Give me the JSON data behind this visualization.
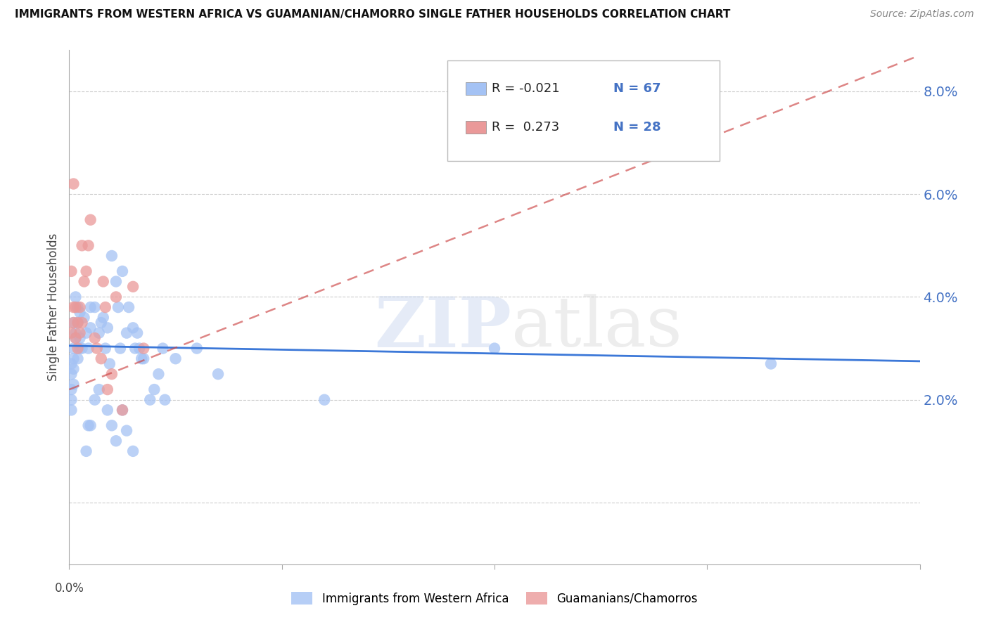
{
  "title": "IMMIGRANTS FROM WESTERN AFRICA VS GUAMANIAN/CHAMORRO SINGLE FATHER HOUSEHOLDS CORRELATION CHART",
  "source": "Source: ZipAtlas.com",
  "ylabel": "Single Father Households",
  "yticks": [
    0.0,
    0.02,
    0.04,
    0.06,
    0.08
  ],
  "ytick_labels": [
    "",
    "2.0%",
    "4.0%",
    "6.0%",
    "8.0%"
  ],
  "xlim": [
    0.0,
    0.4
  ],
  "ylim": [
    -0.012,
    0.088
  ],
  "watermark": "ZIPatlas",
  "legend_label_blue": "Immigrants from Western Africa",
  "legend_label_pink": "Guamanians/Chamorros",
  "blue_color": "#a4c2f4",
  "pink_color": "#ea9999",
  "blue_line_color": "#3c78d8",
  "pink_line_color": "#cc4444",
  "blue_scatter": [
    [
      0.001,
      0.027
    ],
    [
      0.002,
      0.03
    ],
    [
      0.001,
      0.025
    ],
    [
      0.001,
      0.022
    ],
    [
      0.002,
      0.028
    ],
    [
      0.003,
      0.033
    ],
    [
      0.002,
      0.035
    ],
    [
      0.004,
      0.038
    ],
    [
      0.005,
      0.037
    ],
    [
      0.003,
      0.04
    ],
    [
      0.004,
      0.028
    ],
    [
      0.005,
      0.03
    ],
    [
      0.001,
      0.018
    ],
    [
      0.001,
      0.02
    ],
    [
      0.002,
      0.023
    ],
    [
      0.002,
      0.026
    ],
    [
      0.003,
      0.032
    ],
    [
      0.004,
      0.035
    ],
    [
      0.005,
      0.032
    ],
    [
      0.006,
      0.03
    ],
    [
      0.007,
      0.036
    ],
    [
      0.008,
      0.033
    ],
    [
      0.009,
      0.03
    ],
    [
      0.01,
      0.038
    ],
    [
      0.01,
      0.034
    ],
    [
      0.012,
      0.038
    ],
    [
      0.014,
      0.033
    ],
    [
      0.015,
      0.035
    ],
    [
      0.016,
      0.036
    ],
    [
      0.017,
      0.03
    ],
    [
      0.018,
      0.034
    ],
    [
      0.019,
      0.027
    ],
    [
      0.02,
      0.048
    ],
    [
      0.022,
      0.043
    ],
    [
      0.023,
      0.038
    ],
    [
      0.024,
      0.03
    ],
    [
      0.025,
      0.045
    ],
    [
      0.027,
      0.033
    ],
    [
      0.028,
      0.038
    ],
    [
      0.03,
      0.034
    ],
    [
      0.031,
      0.03
    ],
    [
      0.032,
      0.033
    ],
    [
      0.033,
      0.03
    ],
    [
      0.034,
      0.028
    ],
    [
      0.035,
      0.028
    ],
    [
      0.038,
      0.02
    ],
    [
      0.04,
      0.022
    ],
    [
      0.042,
      0.025
    ],
    [
      0.044,
      0.03
    ],
    [
      0.045,
      0.02
    ],
    [
      0.05,
      0.028
    ],
    [
      0.06,
      0.03
    ],
    [
      0.07,
      0.025
    ],
    [
      0.008,
      0.01
    ],
    [
      0.009,
      0.015
    ],
    [
      0.01,
      0.015
    ],
    [
      0.012,
      0.02
    ],
    [
      0.014,
      0.022
    ],
    [
      0.018,
      0.018
    ],
    [
      0.02,
      0.015
    ],
    [
      0.022,
      0.012
    ],
    [
      0.025,
      0.018
    ],
    [
      0.027,
      0.014
    ],
    [
      0.03,
      0.01
    ],
    [
      0.12,
      0.02
    ],
    [
      0.2,
      0.03
    ],
    [
      0.33,
      0.027
    ]
  ],
  "pink_scatter": [
    [
      0.001,
      0.045
    ],
    [
      0.001,
      0.033
    ],
    [
      0.002,
      0.035
    ],
    [
      0.002,
      0.038
    ],
    [
      0.003,
      0.032
    ],
    [
      0.003,
      0.038
    ],
    [
      0.004,
      0.03
    ],
    [
      0.004,
      0.035
    ],
    [
      0.005,
      0.033
    ],
    [
      0.005,
      0.038
    ],
    [
      0.006,
      0.035
    ],
    [
      0.007,
      0.043
    ],
    [
      0.008,
      0.045
    ],
    [
      0.009,
      0.05
    ],
    [
      0.01,
      0.055
    ],
    [
      0.012,
      0.032
    ],
    [
      0.013,
      0.03
    ],
    [
      0.015,
      0.028
    ],
    [
      0.016,
      0.043
    ],
    [
      0.017,
      0.038
    ],
    [
      0.018,
      0.022
    ],
    [
      0.02,
      0.025
    ],
    [
      0.022,
      0.04
    ],
    [
      0.025,
      0.018
    ],
    [
      0.03,
      0.042
    ],
    [
      0.035,
      0.03
    ],
    [
      0.002,
      0.062
    ],
    [
      0.006,
      0.05
    ]
  ],
  "blue_trendline": {
    "x_start": 0.0,
    "y_start": 0.0305,
    "x_end": 0.4,
    "y_end": 0.0275
  },
  "pink_trendline": {
    "x_start": 0.0,
    "y_start": 0.022,
    "x_end": 0.4,
    "y_end": 0.087
  },
  "background_color": "#ffffff",
  "grid_color": "#cccccc",
  "axis_color": "#aaaaaa",
  "title_color": "#111111",
  "right_tick_color": "#4472c4",
  "blue_text_color": "#3c78d8",
  "n_text_color": "#4472c4"
}
